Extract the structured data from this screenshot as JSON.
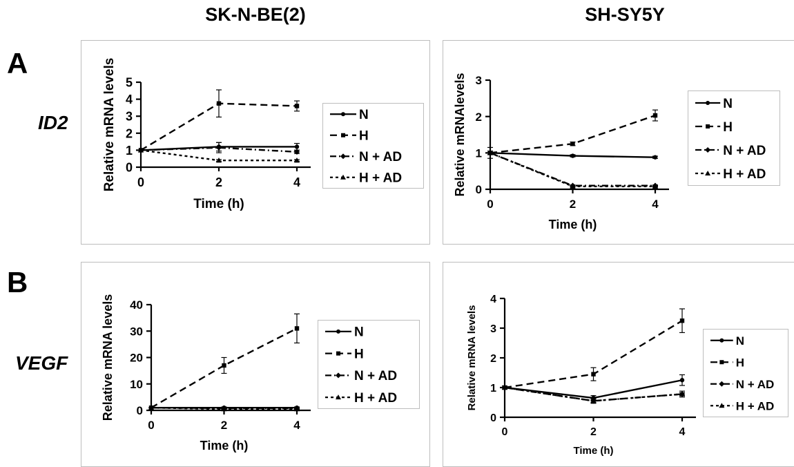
{
  "columns": [
    "SK-N-BE(2)",
    "SH-SY5Y"
  ],
  "rows": [
    {
      "letter": "A",
      "gene": "ID2"
    },
    {
      "letter": "B",
      "gene": "VEGF"
    }
  ],
  "chart_data": [
    {
      "id": "A-left",
      "type": "line",
      "xlabel": "Time (h)",
      "ylabel": "Relative mRNA levels",
      "x": [
        0,
        2,
        4
      ],
      "xticks": [
        "0",
        "2",
        "4"
      ],
      "ylim": [
        0,
        5
      ],
      "yticks": [
        "0",
        "1",
        "2",
        "3",
        "4",
        "5"
      ],
      "legend": "right",
      "series": [
        {
          "name": "N",
          "values": [
            1,
            1.2,
            1.2
          ],
          "err": [
            0,
            0.25,
            0.2
          ],
          "marker": "circle",
          "dash": "solid"
        },
        {
          "name": "H",
          "values": [
            1,
            3.75,
            3.6
          ],
          "err": [
            0,
            0.8,
            0.3
          ],
          "marker": "square",
          "dash": "dashed"
        },
        {
          "name": "N + AD",
          "values": [
            1,
            1.15,
            0.9
          ],
          "err": [
            0,
            0.3,
            0.1
          ],
          "marker": "diamond",
          "dash": "dashdot"
        },
        {
          "name": "H + AD",
          "values": [
            1,
            0.4,
            0.4
          ],
          "err": [
            0,
            0.05,
            0.05
          ],
          "marker": "triangle",
          "dash": "dotted"
        }
      ]
    },
    {
      "id": "A-right",
      "type": "line",
      "xlabel": "Time (h)",
      "ylabel": "Relative mRNAlevels",
      "x": [
        0,
        2,
        4
      ],
      "xticks": [
        "0",
        "2",
        "4"
      ],
      "ylim": [
        0,
        3
      ],
      "yticks": [
        "0",
        "1",
        "2",
        "3"
      ],
      "legend": "right",
      "series": [
        {
          "name": "N",
          "values": [
            1,
            0.92,
            0.88
          ],
          "err": [
            0.05,
            0.03,
            0.03
          ],
          "marker": "circle",
          "dash": "solid"
        },
        {
          "name": "H",
          "values": [
            1,
            1.25,
            2.03
          ],
          "err": [
            0.05,
            0.05,
            0.15
          ],
          "marker": "square",
          "dash": "dashed"
        },
        {
          "name": "N + AD",
          "values": [
            1,
            0.1,
            0.1
          ],
          "err": [
            0.15,
            0.02,
            0.02
          ],
          "marker": "diamond",
          "dash": "dashdot"
        },
        {
          "name": "H + AD",
          "values": [
            1,
            0.08,
            0.08
          ],
          "err": [
            0,
            0.02,
            0.02
          ],
          "marker": "triangle",
          "dash": "dotted"
        }
      ]
    },
    {
      "id": "B-left",
      "type": "line",
      "xlabel": "Time (h)",
      "ylabel": "Relative mRNA levels",
      "x": [
        0,
        2,
        4
      ],
      "xticks": [
        "0",
        "2",
        "4"
      ],
      "ylim": [
        0,
        40
      ],
      "yticks": [
        "0",
        "10",
        "20",
        "30",
        "40"
      ],
      "legend": "right",
      "series": [
        {
          "name": "N",
          "values": [
            1,
            1,
            1
          ],
          "err": [
            0,
            0.3,
            0.3
          ],
          "marker": "circle",
          "dash": "solid"
        },
        {
          "name": "H",
          "values": [
            1,
            17,
            31
          ],
          "err": [
            0,
            3,
            5.5
          ],
          "marker": "square",
          "dash": "dashed"
        },
        {
          "name": "N + AD",
          "values": [
            1,
            0.8,
            0.8
          ],
          "err": [
            0,
            0.2,
            0.2
          ],
          "marker": "diamond",
          "dash": "dashdot"
        },
        {
          "name": "H + AD",
          "values": [
            1,
            0.5,
            0.5
          ],
          "err": [
            0,
            0.1,
            0.1
          ],
          "marker": "triangle",
          "dash": "dotted"
        }
      ]
    },
    {
      "id": "B-right",
      "type": "line",
      "xlabel": "Time (h)",
      "ylabel": "Relative mRNA levels",
      "x": [
        0,
        2,
        4
      ],
      "xticks": [
        "0",
        "2",
        "4"
      ],
      "ylim": [
        0,
        4
      ],
      "yticks": [
        "0",
        "1",
        "2",
        "3",
        "4"
      ],
      "legend": "right",
      "series": [
        {
          "name": "N",
          "values": [
            1,
            0.65,
            1.25
          ],
          "err": [
            0.05,
            0.08,
            0.18
          ],
          "marker": "circle",
          "dash": "solid"
        },
        {
          "name": "H",
          "values": [
            1,
            1.45,
            3.25
          ],
          "err": [
            0.05,
            0.22,
            0.4
          ],
          "marker": "square",
          "dash": "dashed"
        },
        {
          "name": "N + AD",
          "values": [
            1,
            0.55,
            0.78
          ],
          "err": [
            0.05,
            0.08,
            0.1
          ],
          "marker": "diamond",
          "dash": "dashdot"
        },
        {
          "name": "H + AD",
          "values": [
            1,
            0.55,
            0.78
          ],
          "err": [
            0,
            0.05,
            0.05
          ],
          "marker": "triangle",
          "dash": "dotted"
        }
      ]
    }
  ]
}
